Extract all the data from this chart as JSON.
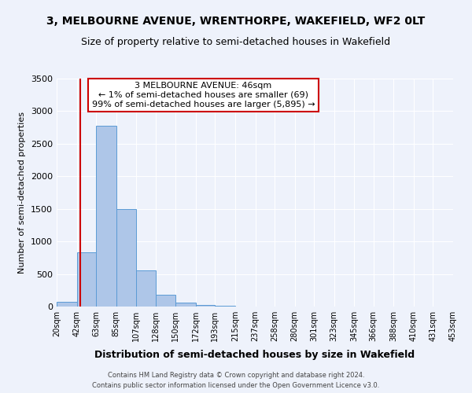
{
  "title_line1": "3, MELBOURNE AVENUE, WRENTHORPE, WAKEFIELD, WF2 0LT",
  "title_line2": "Size of property relative to semi-detached houses in Wakefield",
  "xlabel": "Distribution of semi-detached houses by size in Wakefield",
  "ylabel": "Number of semi-detached properties",
  "bin_edges": [
    20,
    42,
    63,
    85,
    107,
    128,
    150,
    172,
    193,
    215,
    237,
    258,
    280,
    301,
    323,
    345,
    366,
    388,
    410,
    431,
    453
  ],
  "bar_heights": [
    70,
    830,
    2780,
    1500,
    560,
    185,
    60,
    30,
    10,
    5,
    3,
    1,
    1,
    0,
    0,
    0,
    0,
    0,
    0,
    0
  ],
  "bar_color": "#aec6e8",
  "bar_edge_color": "#5b9bd5",
  "property_value": 46,
  "annotation_title": "3 MELBOURNE AVENUE: 46sqm",
  "annotation_line2": "← 1% of semi-detached houses are smaller (69)",
  "annotation_line3": "99% of semi-detached houses are larger (5,895) →",
  "annotation_box_color": "#ffffff",
  "annotation_box_edge_color": "#cc0000",
  "vline_color": "#cc0000",
  "ylim": [
    0,
    3500
  ],
  "yticks": [
    0,
    500,
    1000,
    1500,
    2000,
    2500,
    3000,
    3500
  ],
  "background_color": "#eef2fb",
  "footer_line1": "Contains HM Land Registry data © Crown copyright and database right 2024.",
  "footer_line2": "Contains public sector information licensed under the Open Government Licence v3.0."
}
